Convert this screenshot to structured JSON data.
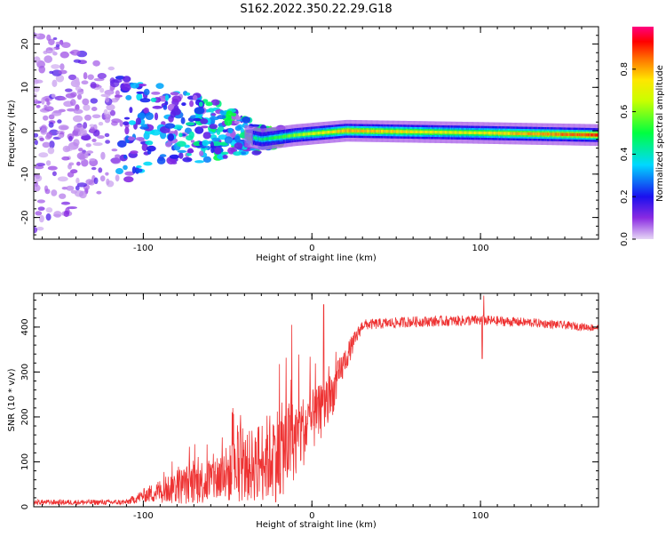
{
  "figure": {
    "title": "S162.2022.350.22.29.G18"
  },
  "chart_data": [
    {
      "type": "heatmap",
      "xlabel": "Height of straight line (km)",
      "ylabel": "Frequency (Hz)",
      "xlim": [
        -165,
        170
      ],
      "ylim": [
        -25,
        24
      ],
      "x_ticks": [
        -100,
        0,
        100
      ],
      "y_ticks": [
        -20,
        -10,
        0,
        10,
        20
      ],
      "grid": false,
      "colorbar": {
        "label": "Normalized spectral amplitude",
        "range": [
          0,
          1
        ],
        "ticks": [
          0.0,
          0.2,
          0.4,
          0.6,
          0.8
        ]
      },
      "band_profile": [
        {
          "x": -165,
          "intensity": 0.15,
          "spread_hz": 24
        },
        {
          "x": -110,
          "intensity": 0.25,
          "spread_hz": 12
        },
        {
          "x": -60,
          "intensity": 0.4,
          "spread_hz": 7
        },
        {
          "x": -30,
          "intensity": 0.45,
          "spread_hz": 3
        },
        {
          "x": -10,
          "intensity": 0.6,
          "spread_hz": 1.5
        },
        {
          "x": 20,
          "intensity": 0.8,
          "spread_hz": 1.5
        },
        {
          "x": 90,
          "intensity": 0.7,
          "spread_hz": 1.5
        },
        {
          "x": 170,
          "intensity": 0.9,
          "spread_hz": 1.5
        }
      ],
      "center_frequency_hz": [
        {
          "x": -60,
          "y": 0.5
        },
        {
          "x": -30,
          "y": -2.0
        },
        {
          "x": -10,
          "y": -1.0
        },
        {
          "x": 20,
          "y": 0.0
        },
        {
          "x": 100,
          "y": -0.5
        },
        {
          "x": 170,
          "y": -1.0
        }
      ]
    },
    {
      "type": "line",
      "xlabel": "Height of straight line (km)",
      "ylabel": "SNR (10 * v/v)",
      "xlim": [
        -165,
        170
      ],
      "ylim": [
        0,
        475
      ],
      "x_ticks": [
        -100,
        0,
        100
      ],
      "y_ticks": [
        0,
        100,
        200,
        300,
        400
      ],
      "grid": false,
      "series": [
        {
          "color": "#ee3333",
          "envelope": [
            {
              "x": -165,
              "mean": 10,
              "noise": 6
            },
            {
              "x": -110,
              "mean": 10,
              "noise": 6
            },
            {
              "x": -100,
              "mean": 25,
              "noise": 15
            },
            {
              "x": -80,
              "mean": 45,
              "noise": 40
            },
            {
              "x": -60,
              "mean": 60,
              "noise": 55
            },
            {
              "x": -40,
              "mean": 85,
              "noise": 75
            },
            {
              "x": -20,
              "mean": 120,
              "noise": 110
            },
            {
              "x": -10,
              "mean": 150,
              "noise": 90
            },
            {
              "x": 0,
              "mean": 190,
              "noise": 70
            },
            {
              "x": 10,
              "mean": 230,
              "noise": 55
            },
            {
              "x": 20,
              "mean": 330,
              "noise": 30
            },
            {
              "x": 30,
              "mean": 405,
              "noise": 12
            },
            {
              "x": 60,
              "mean": 412,
              "noise": 12
            },
            {
              "x": 100,
              "mean": 415,
              "noise": 12
            },
            {
              "x": 130,
              "mean": 410,
              "noise": 10
            },
            {
              "x": 170,
              "mean": 398,
              "noise": 8
            }
          ],
          "spikes": [
            {
              "x": -12,
              "y": 405
            },
            {
              "x": 7,
              "y": 450
            },
            {
              "x": 102,
              "y": 470
            },
            {
              "x": 101,
              "y": 330
            }
          ]
        }
      ]
    }
  ]
}
